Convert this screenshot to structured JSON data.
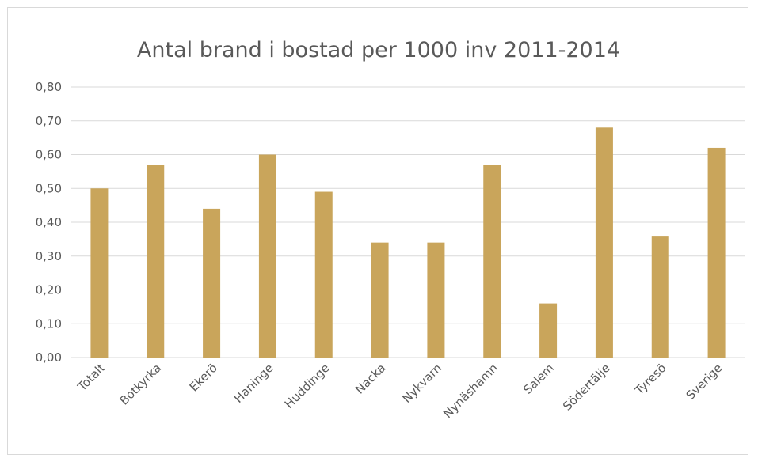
{
  "chart_data": {
    "type": "bar",
    "title": "Antal brand i bostad per 1000 inv 2011-2014",
    "xlabel": "",
    "ylabel": "",
    "categories": [
      "Totalt",
      "Botkyrka",
      "Ekerö",
      "Haninge",
      "Huddinge",
      "Nacka",
      "Nykvarn",
      "Nynäshamn",
      "Salem",
      "Södertälje",
      "Tyresö",
      "Sverige"
    ],
    "values": [
      0.5,
      0.57,
      0.44,
      0.6,
      0.49,
      0.34,
      0.34,
      0.57,
      0.16,
      0.68,
      0.36,
      0.62
    ],
    "ylim": [
      0,
      0.8
    ],
    "yticks": [
      "0,00",
      "0,10",
      "0,20",
      "0,30",
      "0,40",
      "0,50",
      "0,60",
      "0,70",
      "0,80"
    ],
    "grid": true,
    "legend": "none",
    "bar_color": "#C9A55B",
    "grid_color": "#D9D9D9",
    "text_color": "#595959"
  }
}
